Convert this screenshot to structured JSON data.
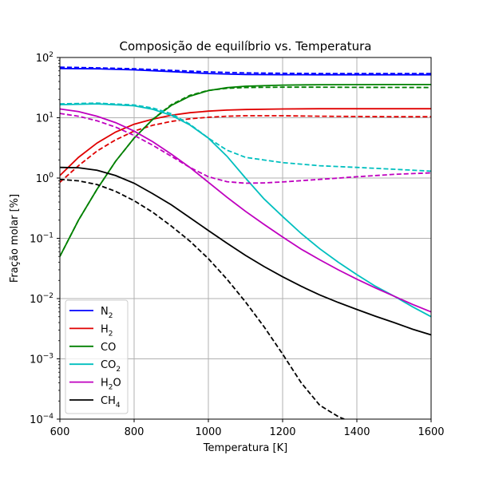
{
  "chart_data": {
    "type": "line",
    "title": "Composição de equilíbrio vs. Temperatura",
    "xlabel": "Temperatura [K]",
    "ylabel": "Fração molar [%]",
    "xlim": [
      600,
      1600
    ],
    "ylim": [
      0.0001,
      100
    ],
    "yscale": "log",
    "grid": true,
    "legend_position": "lower-left",
    "x_ticks": [
      600,
      800,
      1000,
      1200,
      1400,
      1600
    ],
    "y_ticks": [
      {
        "value": 0.0001,
        "base": "10",
        "exp": "−4"
      },
      {
        "value": 0.001,
        "base": "10",
        "exp": "−3"
      },
      {
        "value": 0.01,
        "base": "10",
        "exp": "−2"
      },
      {
        "value": 0.1,
        "base": "10",
        "exp": "−1"
      },
      {
        "value": 1,
        "base": "10",
        "exp": "0"
      },
      {
        "value": 10,
        "base": "10",
        "exp": "1"
      },
      {
        "value": 100,
        "base": "10",
        "exp": "2"
      }
    ],
    "legend": [
      {
        "base": "N",
        "sub": "2",
        "color": "#0000ff"
      },
      {
        "base": "H",
        "sub": "2",
        "color": "#e00000"
      },
      {
        "base": "CO",
        "sub": "",
        "color": "#008000"
      },
      {
        "base": "CO",
        "sub": "2",
        "color": "#00bfbf"
      },
      {
        "base": "H",
        "sub": "2",
        "post": "O",
        "color": "#bf00bf"
      },
      {
        "base": "CH",
        "sub": "4",
        "color": "#000000"
      }
    ],
    "series": [
      {
        "key": "N2",
        "style": "solid",
        "color": "#0000ff",
        "x": [
          600,
          700,
          800,
          900,
          1000,
          1100,
          1200,
          1300,
          1400,
          1500,
          1600
        ],
        "y": [
          65.7,
          64.8,
          62.4,
          58.3,
          54.2,
          52.2,
          51.7,
          51.6,
          51.6,
          51.6,
          51.6
        ]
      },
      {
        "key": "N2",
        "style": "dashed",
        "color": "#0000ff",
        "x": [
          600,
          700,
          800,
          900,
          1000,
          1100,
          1200,
          1300,
          1400,
          1500,
          1600
        ],
        "y": [
          69.1,
          67.2,
          64.8,
          61.2,
          57.6,
          55.5,
          54.6,
          54.2,
          54.1,
          54.1,
          54.1
        ]
      },
      {
        "key": "H2",
        "style": "solid",
        "color": "#e00000",
        "x": [
          600,
          650,
          700,
          750,
          800,
          850,
          900,
          950,
          1000,
          1050,
          1100,
          1200,
          1300,
          1400,
          1500,
          1600
        ],
        "y": [
          1.1,
          2.2,
          3.8,
          5.8,
          7.8,
          9.5,
          11.0,
          12.1,
          12.9,
          13.4,
          13.7,
          14.0,
          14.1,
          14.1,
          14.1,
          14.1
        ]
      },
      {
        "key": "H2",
        "style": "dashed",
        "color": "#e00000",
        "x": [
          600,
          650,
          700,
          750,
          800,
          850,
          900,
          950,
          1000,
          1050,
          1100,
          1200,
          1300,
          1400,
          1500,
          1600
        ],
        "y": [
          0.85,
          1.6,
          2.8,
          4.3,
          6.0,
          7.5,
          8.7,
          9.6,
          10.2,
          10.6,
          10.8,
          10.8,
          10.6,
          10.5,
          10.4,
          10.4
        ]
      },
      {
        "key": "CO",
        "style": "solid",
        "color": "#008000",
        "x": [
          600,
          650,
          700,
          750,
          800,
          850,
          900,
          950,
          1000,
          1050,
          1100,
          1200,
          1300,
          1400,
          1500,
          1600
        ],
        "y": [
          0.05,
          0.2,
          0.65,
          1.9,
          4.6,
          9.4,
          16.0,
          22.8,
          28.2,
          31.6,
          33.4,
          34.8,
          35.3,
          35.5,
          35.6,
          35.6
        ]
      },
      {
        "key": "CO",
        "style": "dashed",
        "color": "#008000",
        "x": [
          600,
          650,
          700,
          750,
          800,
          850,
          900,
          950,
          1000,
          1050,
          1100,
          1200,
          1300,
          1400,
          1500,
          1600
        ],
        "y": [
          0.05,
          0.2,
          0.65,
          1.9,
          4.6,
          9.4,
          16.5,
          23.5,
          28.5,
          30.8,
          31.8,
          32.2,
          32.2,
          32.0,
          31.9,
          31.8
        ]
      },
      {
        "key": "CO2",
        "style": "solid",
        "color": "#00bfbf",
        "x": [
          600,
          700,
          800,
          850,
          900,
          950,
          1000,
          1050,
          1100,
          1150,
          1200,
          1250,
          1300,
          1350,
          1400,
          1450,
          1500,
          1550,
          1600
        ],
        "y": [
          16.5,
          17.0,
          15.8,
          13.8,
          11.0,
          7.6,
          4.6,
          2.3,
          1.0,
          0.45,
          0.23,
          0.12,
          0.067,
          0.04,
          0.025,
          0.016,
          0.011,
          0.0073,
          0.005
        ]
      },
      {
        "key": "CO2",
        "style": "dashed",
        "color": "#00bfbf",
        "x": [
          600,
          700,
          800,
          850,
          900,
          950,
          1000,
          1050,
          1100,
          1200,
          1300,
          1400,
          1500,
          1600
        ],
        "y": [
          17.0,
          17.5,
          16.3,
          14.5,
          11.7,
          7.8,
          4.6,
          2.9,
          2.2,
          1.8,
          1.6,
          1.5,
          1.4,
          1.3
        ]
      },
      {
        "key": "H2O",
        "style": "solid",
        "color": "#bf00bf",
        "x": [
          600,
          650,
          700,
          750,
          800,
          850,
          900,
          950,
          1000,
          1050,
          1100,
          1150,
          1200,
          1250,
          1300,
          1350,
          1400,
          1450,
          1500,
          1550,
          1600
        ],
        "y": [
          14.0,
          12.7,
          10.6,
          8.3,
          6.0,
          4.0,
          2.5,
          1.5,
          0.85,
          0.48,
          0.28,
          0.17,
          0.105,
          0.066,
          0.044,
          0.03,
          0.021,
          0.015,
          0.011,
          0.008,
          0.006
        ]
      },
      {
        "key": "H2O",
        "style": "dashed",
        "color": "#bf00bf",
        "x": [
          600,
          650,
          700,
          750,
          800,
          850,
          900,
          950,
          1000,
          1050,
          1100,
          1150,
          1200,
          1300,
          1400,
          1500,
          1600
        ],
        "y": [
          11.8,
          10.6,
          8.9,
          7.0,
          5.1,
          3.5,
          2.3,
          1.5,
          1.05,
          0.87,
          0.82,
          0.83,
          0.86,
          0.95,
          1.05,
          1.15,
          1.22
        ]
      },
      {
        "key": "CH4",
        "style": "solid",
        "color": "#000000",
        "x": [
          600,
          650,
          700,
          750,
          800,
          850,
          900,
          950,
          1000,
          1050,
          1100,
          1150,
          1200,
          1250,
          1300,
          1350,
          1400,
          1450,
          1500,
          1550,
          1600
        ],
        "y": [
          1.5,
          1.48,
          1.35,
          1.1,
          0.82,
          0.55,
          0.36,
          0.22,
          0.135,
          0.083,
          0.052,
          0.034,
          0.023,
          0.016,
          0.0115,
          0.0086,
          0.0066,
          0.0051,
          0.004,
          0.0031,
          0.0025
        ]
      },
      {
        "key": "CH4",
        "style": "dashed",
        "color": "#000000",
        "x": [
          600,
          650,
          700,
          750,
          800,
          850,
          900,
          950,
          1000,
          1050,
          1100,
          1150,
          1200,
          1250,
          1300,
          1350,
          1366
        ],
        "y": [
          0.95,
          0.9,
          0.78,
          0.6,
          0.42,
          0.27,
          0.16,
          0.09,
          0.046,
          0.021,
          0.0088,
          0.0034,
          0.0012,
          0.0004,
          0.00017,
          0.00011,
          0.0001
        ]
      }
    ]
  }
}
